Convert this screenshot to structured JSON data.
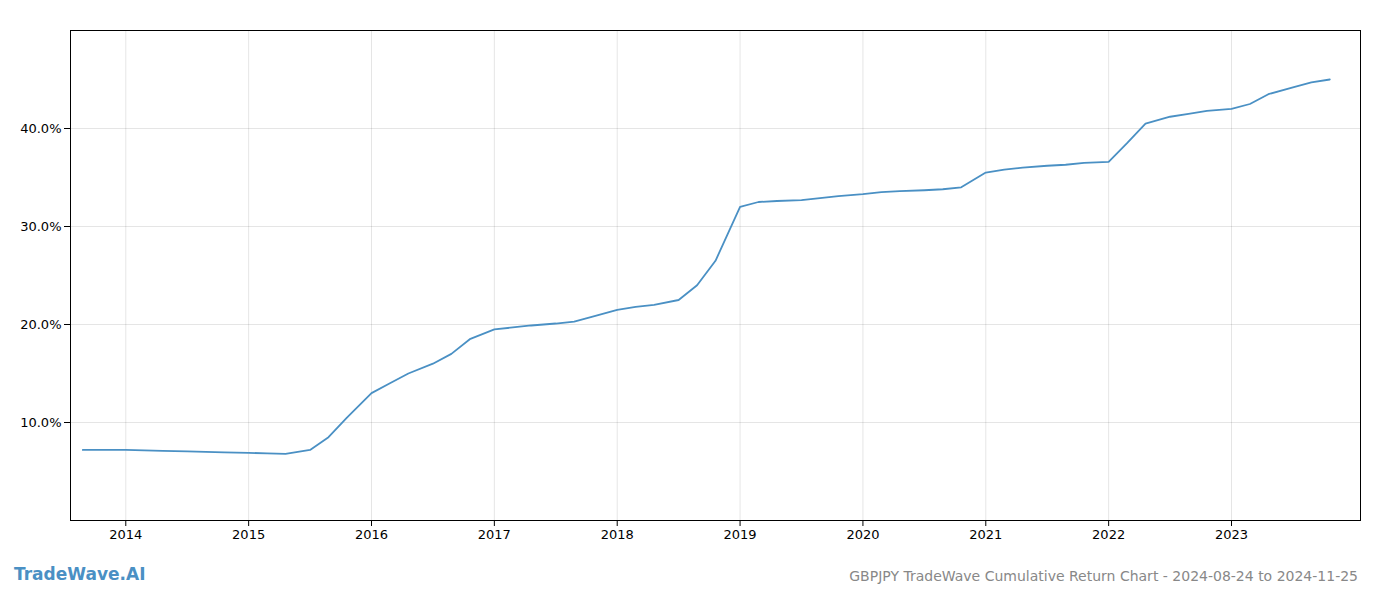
{
  "chart_data": {
    "type": "line",
    "title": "GBPJPY TradeWave Cumulative Return Chart - 2024-08-24 to 2024-11-25",
    "annotations": [
      "TradeWave.AI"
    ],
    "color": "#4a90c4",
    "x": [
      2013.65,
      2014.0,
      2014.15,
      2014.3,
      2014.5,
      2014.65,
      2014.8,
      2015.0,
      2015.15,
      2015.3,
      2015.5,
      2015.65,
      2015.8,
      2016.0,
      2016.15,
      2016.3,
      2016.5,
      2016.65,
      2016.8,
      2017.0,
      2017.15,
      2017.3,
      2017.5,
      2017.65,
      2017.8,
      2018.0,
      2018.15,
      2018.3,
      2018.5,
      2018.65,
      2018.8,
      2019.0,
      2019.15,
      2019.3,
      2019.5,
      2019.65,
      2019.8,
      2020.0,
      2020.15,
      2020.3,
      2020.5,
      2020.65,
      2020.8,
      2021.0,
      2021.15,
      2021.3,
      2021.5,
      2021.65,
      2021.8,
      2022.0,
      2022.15,
      2022.3,
      2022.5,
      2022.65,
      2022.8,
      2023.0,
      2023.15,
      2023.3,
      2023.5,
      2023.65,
      2023.8
    ],
    "values": [
      7.2,
      7.2,
      7.15,
      7.1,
      7.05,
      7.0,
      6.95,
      6.9,
      6.85,
      6.8,
      7.2,
      8.5,
      10.5,
      13.0,
      14.0,
      15.0,
      16.0,
      17.0,
      18.5,
      19.5,
      19.7,
      19.9,
      20.1,
      20.3,
      20.8,
      21.5,
      21.8,
      22.0,
      22.5,
      24.0,
      26.5,
      32.0,
      32.5,
      32.6,
      32.7,
      32.9,
      33.1,
      33.3,
      33.5,
      33.6,
      33.7,
      33.8,
      34.0,
      35.5,
      35.8,
      36.0,
      36.2,
      36.3,
      36.5,
      36.6,
      38.5,
      40.5,
      41.2,
      41.5,
      41.8,
      42.0,
      42.5,
      43.5,
      44.2,
      44.7,
      45.0
    ],
    "xlim": [
      2013.55,
      2024.05
    ],
    "xticks": [
      2014,
      2015,
      2016,
      2017,
      2018,
      2019,
      2020,
      2021,
      2022,
      2023
    ],
    "ylim": [
      0,
      50
    ],
    "yticks": [
      {
        "value": 10.0,
        "label": "10.0%"
      },
      {
        "value": 20.0,
        "label": "20.0%"
      },
      {
        "value": 30.0,
        "label": "30.0%"
      },
      {
        "value": 40.0,
        "label": "40.0%"
      }
    ],
    "grid": true
  }
}
